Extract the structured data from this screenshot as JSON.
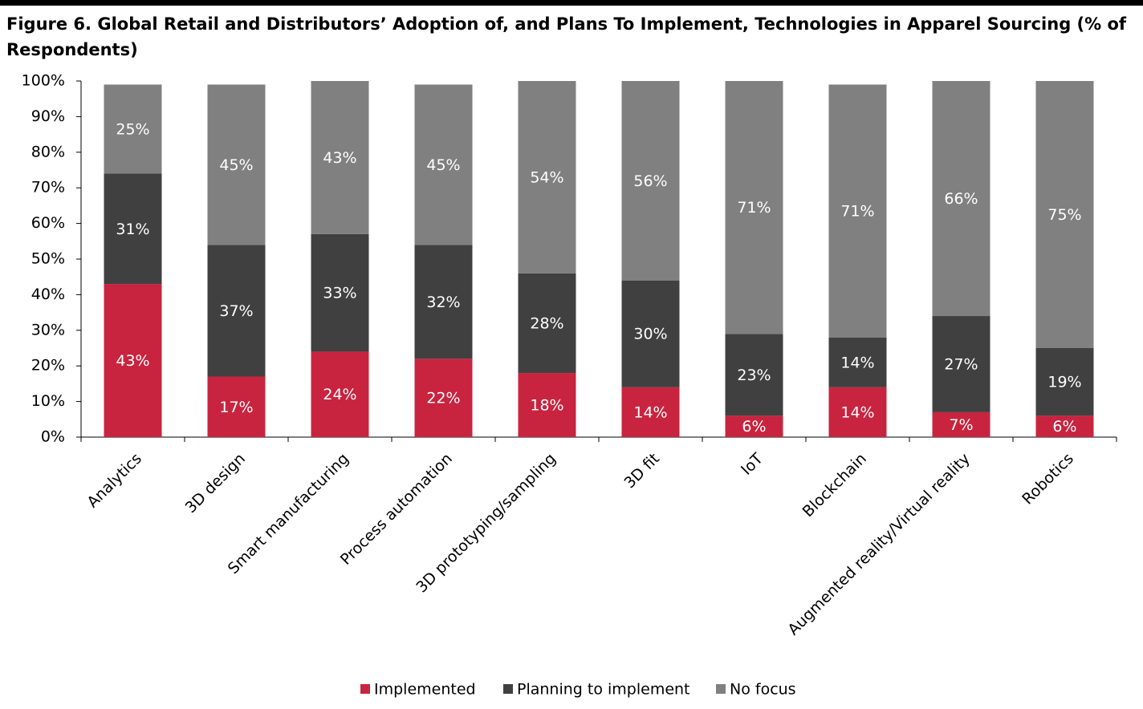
{
  "chart_data": {
    "type": "stacked-bar",
    "title": "Figure 6. Global Retail and Distributors’ Adoption of, and Plans To Implement, Technologies in Apparel Sourcing (% of Respondents)",
    "categories": [
      "Analytics",
      "3D design",
      "Smart manufacturing",
      "Process automation",
      "3D prototyping/sampling",
      "3D fit",
      "IoT",
      "Blockchain",
      "Augmented reality/Virtual reality",
      "Robotics"
    ],
    "series": [
      {
        "name": "Implemented",
        "color": "#c8243f",
        "values": [
          43,
          17,
          24,
          22,
          18,
          14,
          6,
          14,
          7,
          6
        ],
        "value_labels": [
          "43%",
          "17%",
          "24%",
          "22%",
          "18%",
          "14%",
          "6%",
          "14%",
          "7%",
          "6%"
        ]
      },
      {
        "name": "Planning to implement",
        "color": "#404040",
        "values": [
          31,
          37,
          33,
          32,
          28,
          30,
          23,
          14,
          27,
          19
        ],
        "value_labels": [
          "31%",
          "37%",
          "33%",
          "32%",
          "28%",
          "30%",
          "23%",
          "14%",
          "27%",
          "19%"
        ]
      },
      {
        "name": "No focus",
        "color": "#808080",
        "values": [
          25,
          45,
          43,
          45,
          54,
          56,
          71,
          71,
          66,
          75
        ],
        "value_labels": [
          "25%",
          "45%",
          "43%",
          "45%",
          "54%",
          "56%",
          "71%",
          "71%",
          "66%",
          "75%"
        ]
      }
    ],
    "ylim": [
      0,
      100
    ],
    "yticks": [
      {
        "value": 0,
        "label": "0%"
      },
      {
        "value": 10,
        "label": "10%"
      },
      {
        "value": 20,
        "label": "20%"
      },
      {
        "value": 30,
        "label": "30%"
      },
      {
        "value": 40,
        "label": "40%"
      },
      {
        "value": 50,
        "label": "50%"
      },
      {
        "value": 60,
        "label": "60%"
      },
      {
        "value": 70,
        "label": "70%"
      },
      {
        "value": 80,
        "label": "80%"
      },
      {
        "value": 90,
        "label": "90%"
      },
      {
        "value": 100,
        "label": "100%"
      }
    ],
    "legend": "bottom"
  }
}
